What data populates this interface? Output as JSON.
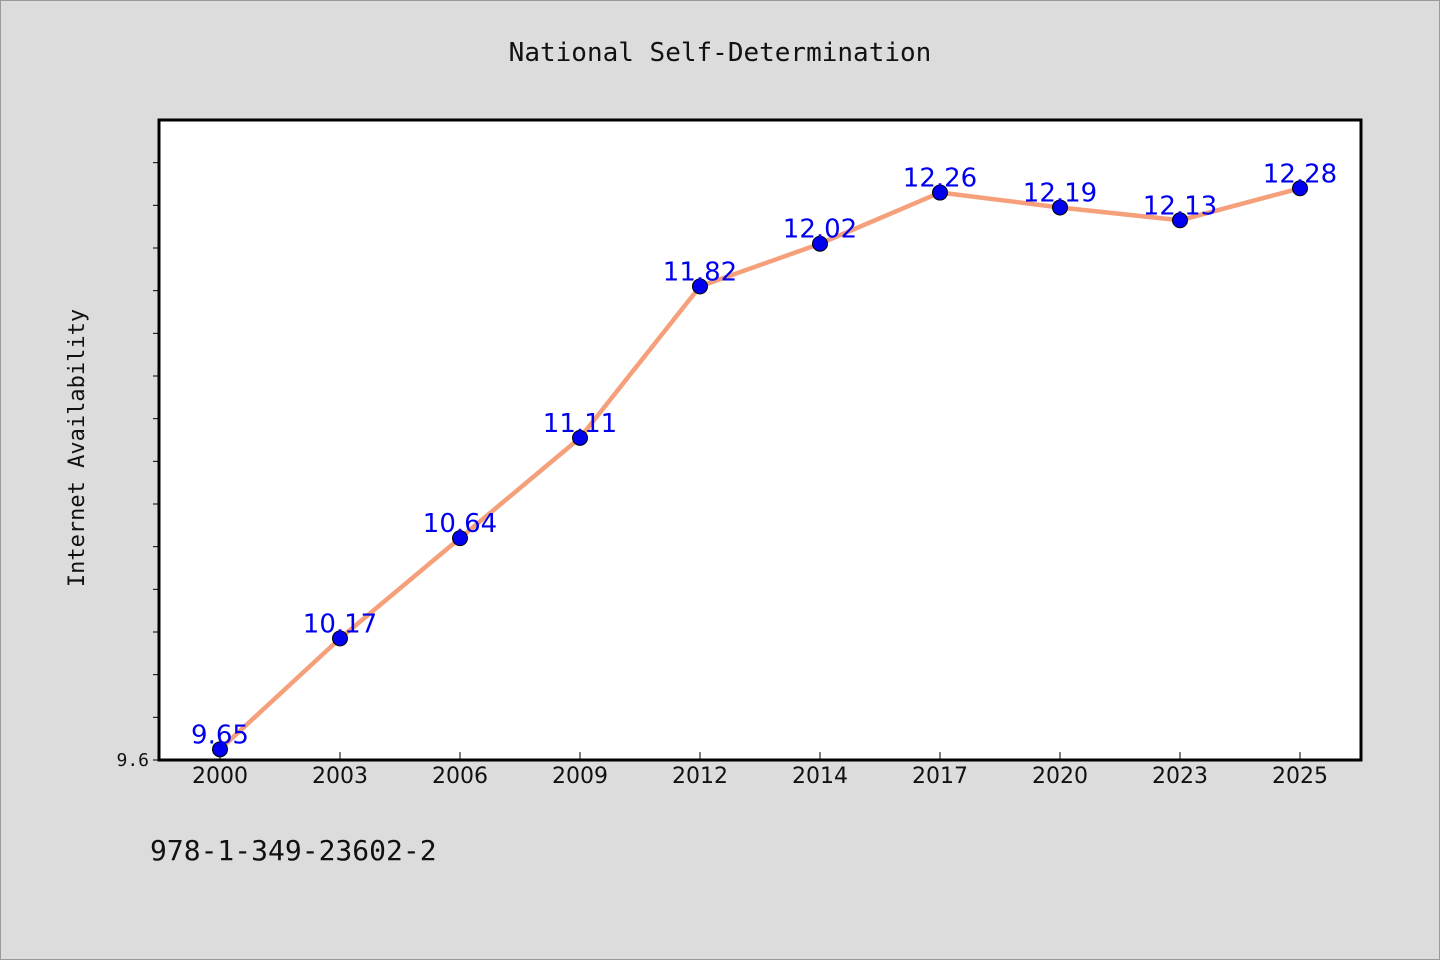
{
  "chart_data": {
    "type": "line",
    "title": "National Self-Determination",
    "xlabel": "",
    "ylabel": "Internet Availability",
    "categories": [
      "2000",
      "2003",
      "2006",
      "2009",
      "2012",
      "2014",
      "2017",
      "2020",
      "2023",
      "2025"
    ],
    "series": [
      {
        "values": [
          9.65,
          10.17,
          10.64,
          11.11,
          11.82,
          12.02,
          12.26,
          12.19,
          12.13,
          12.28
        ]
      }
    ],
    "data_labels": [
      "9.65",
      "10.17",
      "10.64",
      "11.11",
      "11.82",
      "12.02",
      "12.26",
      "12.19",
      "12.13",
      "12.28"
    ],
    "ylim": [
      9.6,
      12.6
    ],
    "y_tick_labels": [
      "9.6"
    ],
    "grid": false,
    "legend": "none",
    "colors": {
      "line": "#f5a07a",
      "marker": "#0000ee",
      "data_label": "#0000ee",
      "plot_background": "#ffffff",
      "page_background": "#dcdcdc"
    }
  },
  "footer": {
    "isbn": "978-1-349-23602-2"
  }
}
